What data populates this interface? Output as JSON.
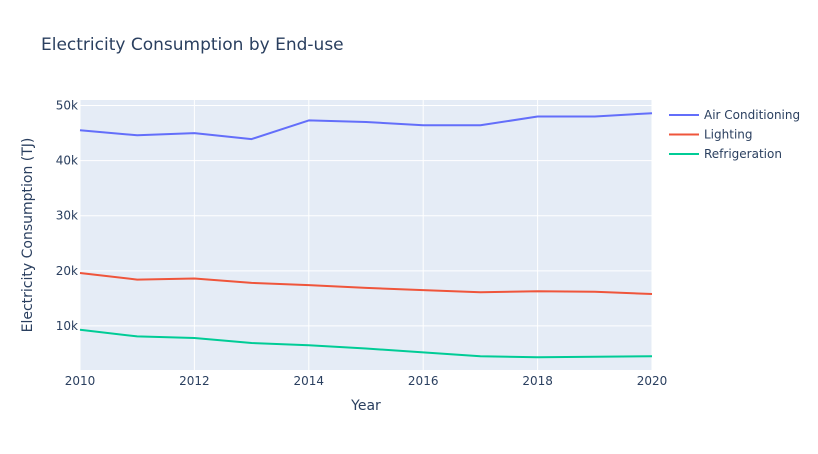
{
  "chart_data": {
    "type": "line",
    "title": "Electricity Consumption by End-use",
    "xlabel": "Year",
    "ylabel": "Electricity Consumption (TJ)",
    "x": [
      2010,
      2011,
      2012,
      2013,
      2014,
      2015,
      2016,
      2017,
      2018,
      2019,
      2020
    ],
    "xlim": [
      2010,
      2020
    ],
    "ylim": [
      2000,
      51000
    ],
    "xticks": [
      2010,
      2012,
      2014,
      2016,
      2018,
      2020
    ],
    "xtick_labels": [
      "2010",
      "2012",
      "2014",
      "2016",
      "2018",
      "2020"
    ],
    "yticks": [
      10000,
      20000,
      30000,
      40000,
      50000
    ],
    "ytick_labels": [
      "10k",
      "20k",
      "30k",
      "40k",
      "50k"
    ],
    "grid": true,
    "legend_position": "top-right",
    "series": [
      {
        "name": "Air Conditioning",
        "color": "#636efa",
        "values": [
          45500,
          44600,
          45000,
          43900,
          47300,
          47000,
          46400,
          46400,
          48000,
          48000,
          48600
        ]
      },
      {
        "name": "Lighting",
        "color": "#ef553b",
        "values": [
          19600,
          18400,
          18600,
          17800,
          17400,
          16900,
          16500,
          16100,
          16300,
          16200,
          15800
        ]
      },
      {
        "name": "Refrigeration",
        "color": "#00cc96",
        "values": [
          9300,
          8100,
          7800,
          6900,
          6500,
          5900,
          5200,
          4500,
          4300,
          4400,
          4500
        ]
      }
    ]
  }
}
